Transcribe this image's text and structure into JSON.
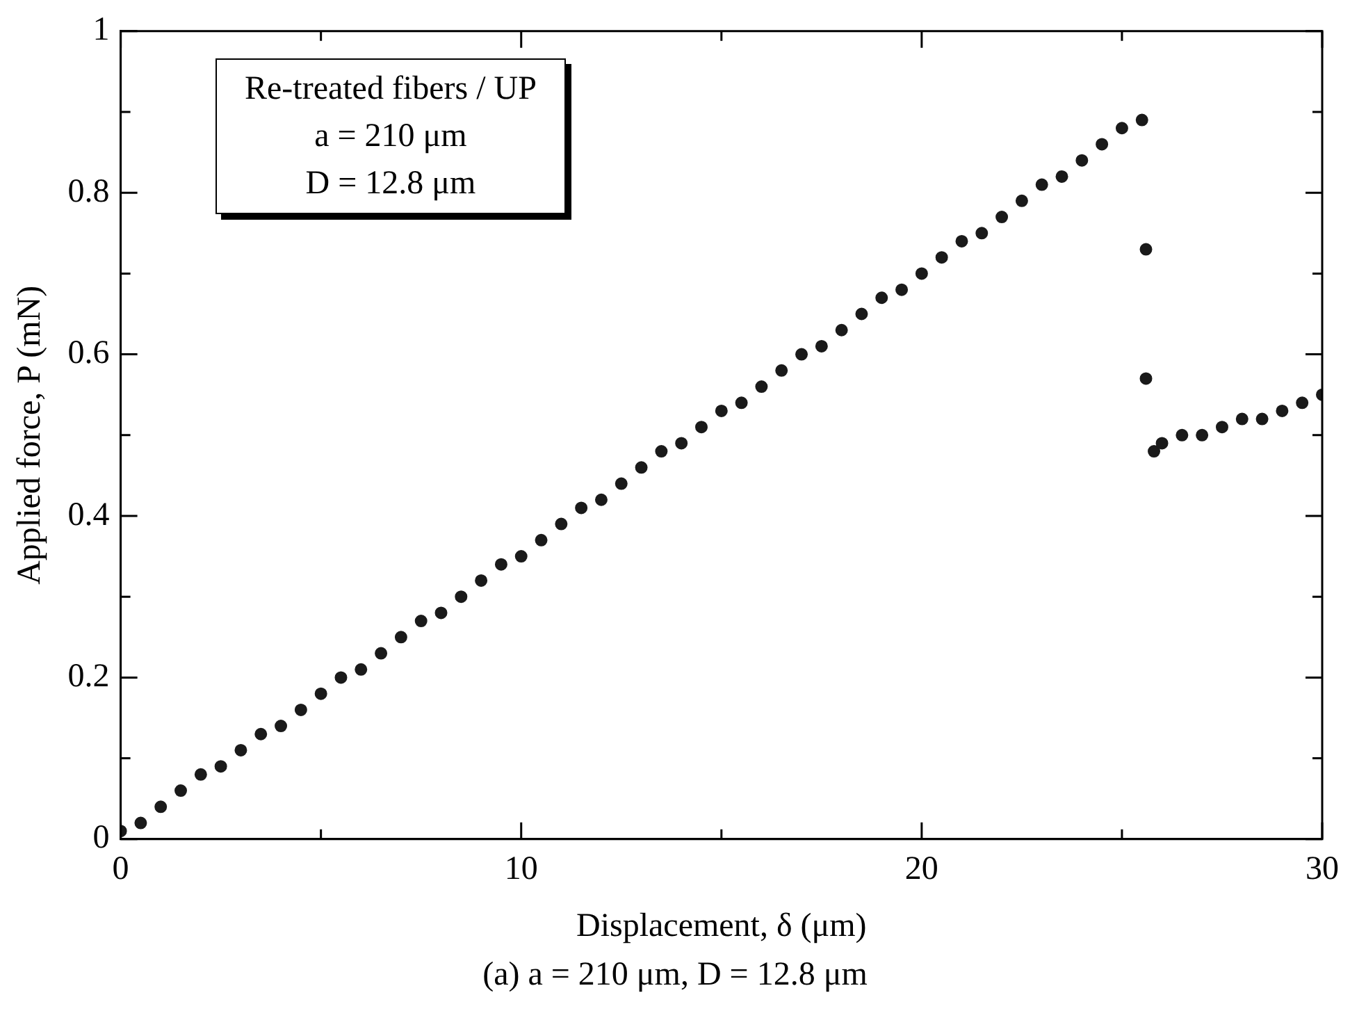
{
  "chart_data": {
    "type": "scatter",
    "xlabel": "Displacement, δ (μm)",
    "ylabel": "Applied force, P (mN)",
    "annotations": [
      "Re-treated fibers / UP",
      "a = 210 μm",
      "D = 12.8 μm",
      "(a) a = 210 μm, D = 12.8 μm"
    ],
    "x": [
      0,
      0.5,
      1,
      1.5,
      2,
      2.5,
      3,
      3.5,
      4,
      4.5,
      5,
      5.5,
      6,
      6.5,
      7,
      7.5,
      8,
      8.5,
      9,
      9.5,
      10,
      10.5,
      11,
      11.5,
      12,
      12.5,
      13,
      13.5,
      14,
      14.5,
      15,
      15.5,
      16,
      16.5,
      17,
      17.5,
      18,
      18.5,
      19,
      19.5,
      20,
      20.5,
      21,
      21.5,
      22,
      22.5,
      23,
      23.5,
      24,
      24.5,
      25,
      25.5,
      25.6,
      25.6,
      25.8,
      26,
      26.5,
      27,
      27.5,
      28,
      28.5,
      29,
      29.5,
      30
    ],
    "values": [
      0.01,
      0.02,
      0.04,
      0.06,
      0.08,
      0.09,
      0.11,
      0.13,
      0.14,
      0.16,
      0.18,
      0.2,
      0.21,
      0.23,
      0.25,
      0.27,
      0.28,
      0.3,
      0.32,
      0.34,
      0.35,
      0.37,
      0.39,
      0.41,
      0.42,
      0.44,
      0.46,
      0.48,
      0.49,
      0.51,
      0.53,
      0.54,
      0.56,
      0.58,
      0.6,
      0.61,
      0.63,
      0.65,
      0.67,
      0.68,
      0.7,
      0.72,
      0.74,
      0.75,
      0.77,
      0.79,
      0.81,
      0.82,
      0.84,
      0.86,
      0.88,
      0.89,
      0.73,
      0.57,
      0.48,
      0.49,
      0.5,
      0.5,
      0.51,
      0.52,
      0.52,
      0.53,
      0.54,
      0.55
    ],
    "color": "#1a1a1a",
    "marker": "circle",
    "grid": false,
    "legend": false,
    "xlim": [
      0,
      30
    ],
    "xticks": [
      0,
      {
        "value": 5,
        "label": null
      },
      10,
      {
        "value": 15,
        "label": null
      },
      20,
      {
        "value": 25,
        "label": null
      },
      30
    ],
    "ylim": [
      0,
      1
    ],
    "yticks": [
      0,
      {
        "value": 0.1,
        "label": null
      },
      0.2,
      {
        "value": 0.3,
        "label": null
      },
      0.4,
      {
        "value": 0.5,
        "label": null
      },
      0.6,
      {
        "value": 0.7,
        "label": null
      },
      0.8,
      {
        "value": 0.9,
        "label": null
      },
      1
    ]
  }
}
